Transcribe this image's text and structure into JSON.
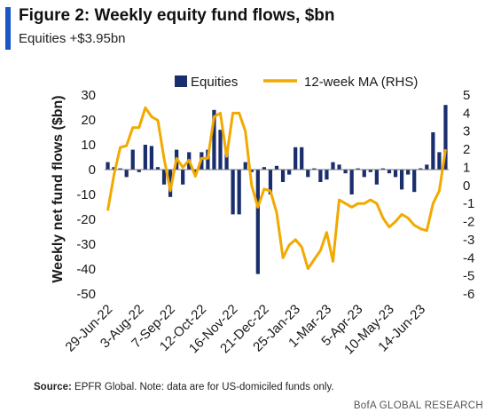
{
  "header": {
    "title": "Figure 2: Weekly equity fund flows, $bn",
    "subtitle": "Equities +$3.95bn"
  },
  "footer": {
    "source_label": "Source:",
    "source_text": "EPFR Global. Note: data are for US-domiciled funds only.",
    "brand": "BofA GLOBAL RESEARCH"
  },
  "colors": {
    "bars": "#1a2e6e",
    "line": "#f2a900",
    "accent": "#1a56c4"
  },
  "chart_data": {
    "type": "bar",
    "ylabel": "Weekly net fund flows ($bn)",
    "ylim": [
      -50,
      30
    ],
    "yticks": [
      -50,
      -40,
      -30,
      -20,
      -10,
      0,
      10,
      20,
      30
    ],
    "y2lim": [
      -6,
      5
    ],
    "y2ticks": [
      -6,
      -5,
      -4,
      -3,
      -2,
      -1,
      0,
      1,
      2,
      3,
      4,
      5
    ],
    "xtick_labels": [
      "29-Jun-22",
      "3-Aug-22",
      "7-Sep-22",
      "12-Oct-22",
      "16-Nov-22",
      "21-Dec-22",
      "25-Jan-23",
      "1-Mar-23",
      "5-Apr-23",
      "10-May-23",
      "14-Jun-23"
    ],
    "legend": {
      "position": "top",
      "entries": [
        "Equities",
        "12-week MA (RHS)"
      ]
    },
    "series": [
      {
        "name": "Equities",
        "type": "bar",
        "axis": "left",
        "values": [
          3,
          1,
          0.5,
          -3,
          8,
          -1,
          10,
          9.5,
          1,
          -6,
          -11,
          8,
          -6,
          7,
          -2,
          7,
          8,
          24,
          16,
          8,
          -18,
          -18,
          3,
          -1,
          -42,
          1,
          -10,
          1.5,
          -5,
          -2,
          9,
          9,
          -3,
          0.5,
          -5,
          -4,
          3,
          2,
          -1.5,
          -10,
          0.5,
          -3,
          -1,
          -6,
          0.5,
          -1.5,
          -3,
          -8,
          -2,
          -9,
          0.5,
          2,
          15,
          7,
          26
        ]
      },
      {
        "name": "12-week MA (RHS)",
        "type": "line",
        "axis": "right",
        "values": [
          -1.4,
          0.6,
          2.1,
          2.2,
          3.2,
          3.2,
          4.3,
          3.8,
          3.6,
          1.5,
          -0.3,
          1.5,
          1.0,
          1.4,
          0.5,
          1.5,
          1.5,
          3.8,
          4.0,
          1.6,
          4.0,
          4.0,
          3.0,
          0.0,
          -1.2,
          -0.2,
          -0.3,
          -1.5,
          -4.0,
          -3.3,
          -3.0,
          -3.4,
          -4.6,
          -4.1,
          -3.6,
          -2.6,
          -4.2,
          -0.8,
          -1.0,
          -1.2,
          -1.0,
          -1.0,
          -0.8,
          -1.0,
          -1.8,
          -2.3,
          -2.0,
          -1.6,
          -1.8,
          -2.2,
          -2.4,
          -2.5,
          -1.0,
          -0.3,
          2.0
        ]
      }
    ]
  }
}
